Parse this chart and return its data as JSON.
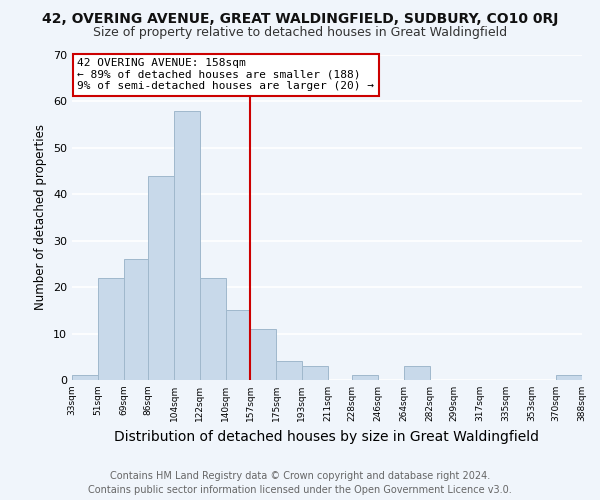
{
  "title1": "42, OVERING AVENUE, GREAT WALDINGFIELD, SUDBURY, CO10 0RJ",
  "title2": "Size of property relative to detached houses in Great Waldingfield",
  "xlabel": "Distribution of detached houses by size in Great Waldingfield",
  "ylabel": "Number of detached properties",
  "bar_edges": [
    33,
    51,
    69,
    86,
    104,
    122,
    140,
    157,
    175,
    193,
    211,
    228,
    246,
    264,
    282,
    299,
    317,
    335,
    353,
    370,
    388
  ],
  "bar_heights": [
    1,
    22,
    26,
    44,
    58,
    22,
    15,
    11,
    4,
    3,
    0,
    1,
    0,
    3,
    0,
    0,
    0,
    0,
    0,
    1
  ],
  "bar_color": "#c8d9ea",
  "bar_edge_color": "#a0b8cc",
  "vline_x": 157,
  "vline_color": "#cc0000",
  "ylim": [
    0,
    70
  ],
  "yticks": [
    0,
    10,
    20,
    30,
    40,
    50,
    60,
    70
  ],
  "xtick_labels": [
    "33sqm",
    "51sqm",
    "69sqm",
    "86sqm",
    "104sqm",
    "122sqm",
    "140sqm",
    "157sqm",
    "175sqm",
    "193sqm",
    "211sqm",
    "228sqm",
    "246sqm",
    "264sqm",
    "282sqm",
    "299sqm",
    "317sqm",
    "335sqm",
    "353sqm",
    "370sqm",
    "388sqm"
  ],
  "annotation_title": "42 OVERING AVENUE: 158sqm",
  "annotation_line1": "← 89% of detached houses are smaller (188)",
  "annotation_line2": "9% of semi-detached houses are larger (20) →",
  "annotation_box_color": "#ffffff",
  "annotation_box_edge": "#cc0000",
  "footer1": "Contains HM Land Registry data © Crown copyright and database right 2024.",
  "footer2": "Contains public sector information licensed under the Open Government Licence v3.0.",
  "background_color": "#f0f5fb",
  "grid_color": "#ffffff",
  "title1_fontsize": 10,
  "title2_fontsize": 9,
  "xlabel_fontsize": 10,
  "ylabel_fontsize": 8.5,
  "footer_fontsize": 7
}
